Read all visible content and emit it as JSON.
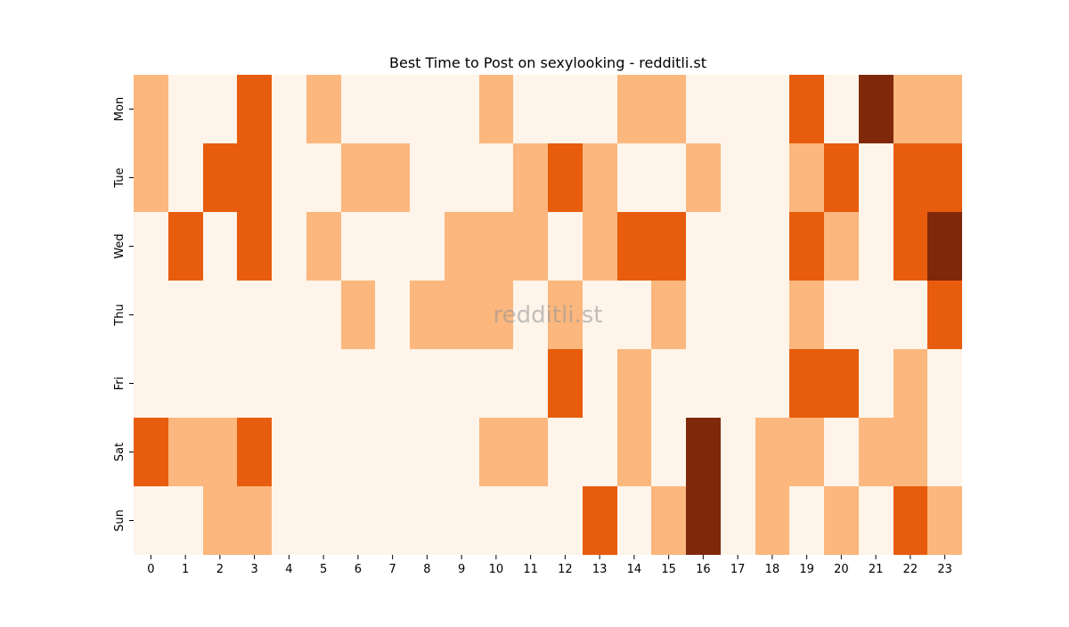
{
  "chart_data": {
    "type": "heatmap",
    "title": "Best Time to Post on sexylooking - redditli.st",
    "xlabel": "",
    "ylabel": "",
    "x_categories": [
      "0",
      "1",
      "2",
      "3",
      "4",
      "5",
      "6",
      "7",
      "8",
      "9",
      "10",
      "11",
      "12",
      "13",
      "14",
      "15",
      "16",
      "17",
      "18",
      "19",
      "20",
      "21",
      "22",
      "23"
    ],
    "y_categories": [
      "Mon",
      "Tue",
      "Wed",
      "Thu",
      "Fri",
      "Sat",
      "Sun"
    ],
    "values": [
      [
        1,
        0,
        0,
        2,
        0,
        1,
        0,
        0,
        0,
        0,
        1,
        0,
        0,
        0,
        1,
        1,
        0,
        0,
        0,
        2,
        0,
        3,
        1,
        1
      ],
      [
        1,
        0,
        2,
        2,
        0,
        0,
        1,
        1,
        0,
        0,
        0,
        1,
        2,
        1,
        0,
        0,
        1,
        0,
        0,
        1,
        2,
        0,
        2,
        2
      ],
      [
        0,
        2,
        0,
        2,
        0,
        1,
        0,
        0,
        0,
        1,
        1,
        1,
        0,
        1,
        2,
        2,
        0,
        0,
        0,
        2,
        1,
        0,
        2,
        3
      ],
      [
        0,
        0,
        0,
        0,
        0,
        0,
        1,
        0,
        1,
        1,
        1,
        0,
        1,
        0,
        0,
        1,
        0,
        0,
        0,
        1,
        0,
        0,
        0,
        2
      ],
      [
        0,
        0,
        0,
        0,
        0,
        0,
        0,
        0,
        0,
        0,
        0,
        0,
        2,
        0,
        1,
        0,
        0,
        0,
        0,
        2,
        2,
        0,
        1,
        0
      ],
      [
        2,
        1,
        1,
        2,
        0,
        0,
        0,
        0,
        0,
        0,
        1,
        1,
        0,
        0,
        1,
        0,
        3,
        0,
        1,
        1,
        0,
        1,
        1,
        0
      ],
      [
        0,
        0,
        1,
        1,
        0,
        0,
        0,
        0,
        0,
        0,
        0,
        0,
        0,
        2,
        0,
        1,
        3,
        0,
        1,
        0,
        1,
        0,
        2,
        1
      ]
    ],
    "value_range": [
      0,
      3
    ],
    "colors": [
      "#fef4e9",
      "#fbb77d",
      "#e85c0d",
      "#80280a"
    ],
    "colorbar": false,
    "grid": false
  },
  "watermark": "redditli.st"
}
